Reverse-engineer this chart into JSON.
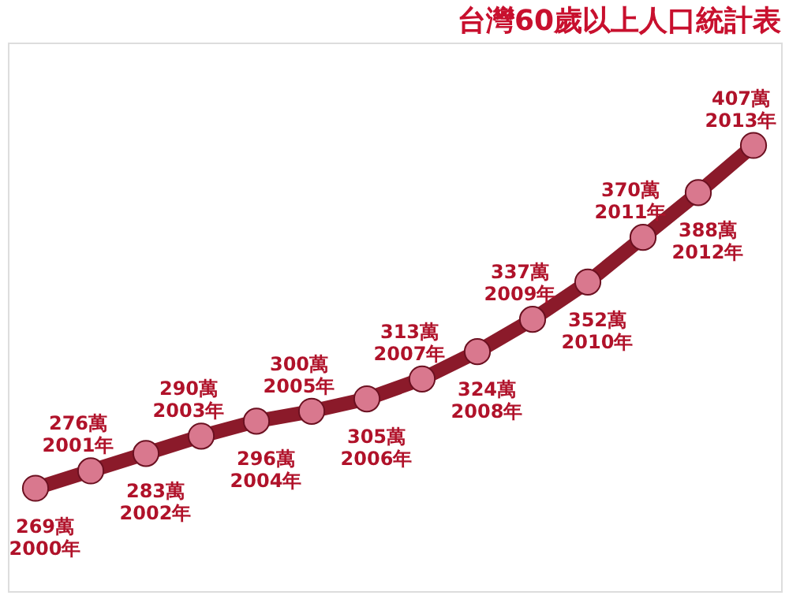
{
  "chart_data": {
    "type": "line",
    "title": "台灣60歲以上人口統計表",
    "categories": [
      null,
      null,
      null,
      null,
      null,
      null,
      null,
      null,
      null,
      null,
      null,
      null,
      null,
      null
    ],
    "series": [
      {
        "color": "#8b1a2a",
        "values": [
          269,
          276,
          283,
          290,
          296,
          300,
          305,
          313,
          324,
          337,
          352,
          370,
          388,
          407
        ],
        "value_labels": [
          "269萬\n2000年",
          "276萬\n2001年",
          "283萬\n2002年",
          "290萬\n2003年",
          "296萬\n2004年",
          "300萬\n2005年",
          "305萬\n2006年",
          "313萬\n2007年",
          "324萬\n2008年",
          "337萬\n2009年",
          "352萬\n2010年",
          "370萬\n2011年",
          "388萬\n2012年",
          "407萬\n2013年"
        ]
      }
    ],
    "marker": "circle",
    "line_style": "solid",
    "tick_labels": false
  }
}
